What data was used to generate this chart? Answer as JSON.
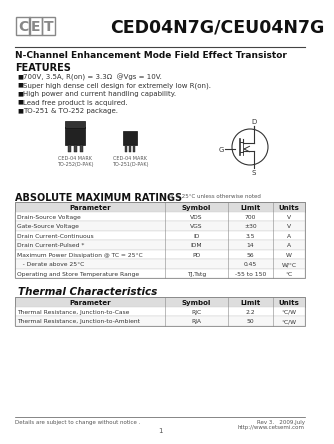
{
  "title": "CED04N7G/CEU04N7G",
  "subtitle": "N-Channel Enhancement Mode Field Effect Transistor",
  "features_title": "FEATURES",
  "features": [
    "700V, 3.5A, R(on) = 3.3Ω  @Vgs = 10V.",
    "Super high dense cell design for extremely low R(on).",
    "High power and current handling capability.",
    "Lead free product is acquired.",
    "TO-251 & TO-252 package."
  ],
  "abs_max_title": "ABSOLUTE MAXIMUM RATINGS",
  "abs_max_note": "TA = 25°C unless otherwise noted",
  "abs_max_headers": [
    "Parameter",
    "Symbol",
    "Limit",
    "Units"
  ],
  "abs_max_rows": [
    [
      "Drain-Source Voltage",
      "VDS",
      "700",
      "V"
    ],
    [
      "Gate-Source Voltage",
      "VGS",
      "±30",
      "V"
    ],
    [
      "Drain Current-Continuous",
      "ID",
      "3.5",
      "A"
    ],
    [
      "Drain Current-Pulsed *",
      "IDM",
      "14",
      "A"
    ],
    [
      "Maximum Power Dissipation @ TC = 25°C",
      "PD",
      "56",
      "W"
    ],
    [
      "   - Derate above 25°C",
      "",
      "0.45",
      "W/°C"
    ],
    [
      "Operating and Store Temperature Range",
      "TJ,Tstg",
      "-55 to 150",
      "°C"
    ]
  ],
  "thermal_title": "Thermal Characteristics",
  "thermal_headers": [
    "Parameter",
    "Symbol",
    "Limit",
    "Units"
  ],
  "thermal_rows": [
    [
      "Thermal Resistance, Junction-to-Case",
      "RJC",
      "2.2",
      "°C/W"
    ],
    [
      "Thermal Resistance, Junction-to-Ambient",
      "RJA",
      "50",
      "°C/W"
    ]
  ],
  "footer_left": "Details are subject to change without notice .",
  "footer_right1": "Rev 3.   2009.July",
  "footer_right2": "http://www.cetsemi.com",
  "page_num": "1",
  "bg_color": "#ffffff"
}
